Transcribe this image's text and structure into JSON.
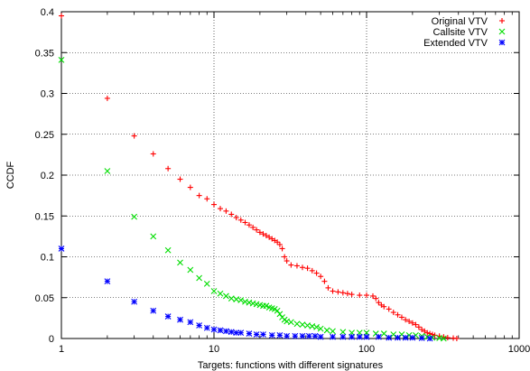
{
  "chart_data": {
    "type": "scatter",
    "title": "",
    "xlabel": "Targets: functions with different signatures",
    "ylabel": "CCDF",
    "xscale": "log",
    "xlim": [
      1,
      1000
    ],
    "ylim": [
      0,
      0.4
    ],
    "x_ticks": [
      1,
      10,
      100,
      1000
    ],
    "x_tick_labels": [
      "1",
      "10",
      "100",
      "1000"
    ],
    "y_ticks": [
      0,
      0.05,
      0.1,
      0.15,
      0.2,
      0.25,
      0.3,
      0.35,
      0.4
    ],
    "y_tick_labels": [
      "0",
      "0.05",
      "0.1",
      "0.15",
      "0.2",
      "0.25",
      "0.3",
      "0.35",
      "0.4"
    ],
    "grid": true,
    "legend_position": "top-right",
    "series": [
      {
        "name": "Original VTV",
        "color": "#ff0000",
        "marker": "plus",
        "points": [
          [
            1,
            0.395
          ],
          [
            2,
            0.294
          ],
          [
            3,
            0.248
          ],
          [
            4,
            0.226
          ],
          [
            5,
            0.208
          ],
          [
            6,
            0.195
          ],
          [
            7,
            0.185
          ],
          [
            8,
            0.175
          ],
          [
            9,
            0.171
          ],
          [
            10,
            0.164
          ],
          [
            11,
            0.159
          ],
          [
            12,
            0.156
          ],
          [
            13,
            0.152
          ],
          [
            14,
            0.148
          ],
          [
            15,
            0.145
          ],
          [
            16,
            0.142
          ],
          [
            17,
            0.139
          ],
          [
            18,
            0.136
          ],
          [
            19,
            0.133
          ],
          [
            20,
            0.13
          ],
          [
            21,
            0.128
          ],
          [
            22,
            0.126
          ],
          [
            23,
            0.124
          ],
          [
            24,
            0.122
          ],
          [
            25,
            0.12
          ],
          [
            26,
            0.118
          ],
          [
            27,
            0.115
          ],
          [
            28,
            0.11
          ],
          [
            29,
            0.1
          ],
          [
            30,
            0.095
          ],
          [
            32,
            0.09
          ],
          [
            35,
            0.089
          ],
          [
            38,
            0.087
          ],
          [
            41,
            0.086
          ],
          [
            44,
            0.083
          ],
          [
            47,
            0.08
          ],
          [
            50,
            0.076
          ],
          [
            53,
            0.07
          ],
          [
            56,
            0.062
          ],
          [
            60,
            0.058
          ],
          [
            65,
            0.057
          ],
          [
            70,
            0.056
          ],
          [
            75,
            0.055
          ],
          [
            80,
            0.054
          ],
          [
            90,
            0.053
          ],
          [
            100,
            0.053
          ],
          [
            110,
            0.052
          ],
          [
            115,
            0.049
          ],
          [
            120,
            0.044
          ],
          [
            125,
            0.041
          ],
          [
            130,
            0.039
          ],
          [
            140,
            0.036
          ],
          [
            150,
            0.032
          ],
          [
            160,
            0.029
          ],
          [
            170,
            0.026
          ],
          [
            180,
            0.023
          ],
          [
            190,
            0.021
          ],
          [
            200,
            0.019
          ],
          [
            210,
            0.017
          ],
          [
            220,
            0.014
          ],
          [
            230,
            0.011
          ],
          [
            240,
            0.009
          ],
          [
            250,
            0.007
          ],
          [
            260,
            0.006
          ],
          [
            270,
            0.005
          ],
          [
            280,
            0.004
          ],
          [
            300,
            0.003
          ],
          [
            320,
            0.002
          ],
          [
            340,
            0.001
          ],
          [
            370,
            0.0005
          ],
          [
            390,
            0
          ]
        ]
      },
      {
        "name": "Callsite VTV",
        "color": "#00dd00",
        "marker": "cross",
        "points": [
          [
            1,
            0.341
          ],
          [
            2,
            0.205
          ],
          [
            3,
            0.149
          ],
          [
            4,
            0.125
          ],
          [
            5,
            0.108
          ],
          [
            6,
            0.093
          ],
          [
            7,
            0.084
          ],
          [
            8,
            0.074
          ],
          [
            9,
            0.067
          ],
          [
            10,
            0.058
          ],
          [
            11,
            0.055
          ],
          [
            12,
            0.052
          ],
          [
            13,
            0.049
          ],
          [
            14,
            0.048
          ],
          [
            15,
            0.047
          ],
          [
            16,
            0.045
          ],
          [
            17,
            0.044
          ],
          [
            18,
            0.043
          ],
          [
            19,
            0.042
          ],
          [
            20,
            0.041
          ],
          [
            21,
            0.04
          ],
          [
            22,
            0.04
          ],
          [
            23,
            0.038
          ],
          [
            24,
            0.037
          ],
          [
            25,
            0.036
          ],
          [
            26,
            0.034
          ],
          [
            27,
            0.03
          ],
          [
            28,
            0.026
          ],
          [
            29,
            0.023
          ],
          [
            30,
            0.021
          ],
          [
            32,
            0.02
          ],
          [
            35,
            0.018
          ],
          [
            38,
            0.017
          ],
          [
            41,
            0.016
          ],
          [
            44,
            0.015
          ],
          [
            47,
            0.014
          ],
          [
            50,
            0.012
          ],
          [
            55,
            0.01
          ],
          [
            60,
            0.009
          ],
          [
            70,
            0.008
          ],
          [
            80,
            0.007
          ],
          [
            90,
            0.007
          ],
          [
            100,
            0.007
          ],
          [
            115,
            0.006
          ],
          [
            130,
            0.006
          ],
          [
            150,
            0.005
          ],
          [
            170,
            0.005
          ],
          [
            190,
            0.004
          ],
          [
            210,
            0.004
          ],
          [
            230,
            0.003
          ],
          [
            250,
            0.002
          ],
          [
            270,
            0.001
          ],
          [
            300,
            0.0005
          ],
          [
            320,
            0
          ]
        ]
      },
      {
        "name": "Extended VTV",
        "color": "#0000ff",
        "marker": "star",
        "points": [
          [
            1,
            0.11
          ],
          [
            2,
            0.07
          ],
          [
            3,
            0.045
          ],
          [
            4,
            0.034
          ],
          [
            5,
            0.027
          ],
          [
            6,
            0.023
          ],
          [
            7,
            0.02
          ],
          [
            8,
            0.016
          ],
          [
            9,
            0.013
          ],
          [
            10,
            0.011
          ],
          [
            11,
            0.01
          ],
          [
            12,
            0.009
          ],
          [
            13,
            0.008
          ],
          [
            14,
            0.007
          ],
          [
            15,
            0.007
          ],
          [
            17,
            0.006
          ],
          [
            19,
            0.005
          ],
          [
            21,
            0.005
          ],
          [
            24,
            0.004
          ],
          [
            27,
            0.004
          ],
          [
            30,
            0.003
          ],
          [
            34,
            0.003
          ],
          [
            38,
            0.003
          ],
          [
            42,
            0.003
          ],
          [
            46,
            0.003
          ],
          [
            50,
            0.002
          ],
          [
            60,
            0.002
          ],
          [
            70,
            0.002
          ],
          [
            80,
            0.002
          ],
          [
            90,
            0.002
          ],
          [
            100,
            0.002
          ],
          [
            120,
            0.002
          ],
          [
            140,
            0.001
          ],
          [
            160,
            0.001
          ],
          [
            180,
            0.001
          ],
          [
            200,
            0.001
          ],
          [
            230,
            0.0005
          ],
          [
            260,
            0
          ]
        ]
      }
    ]
  }
}
